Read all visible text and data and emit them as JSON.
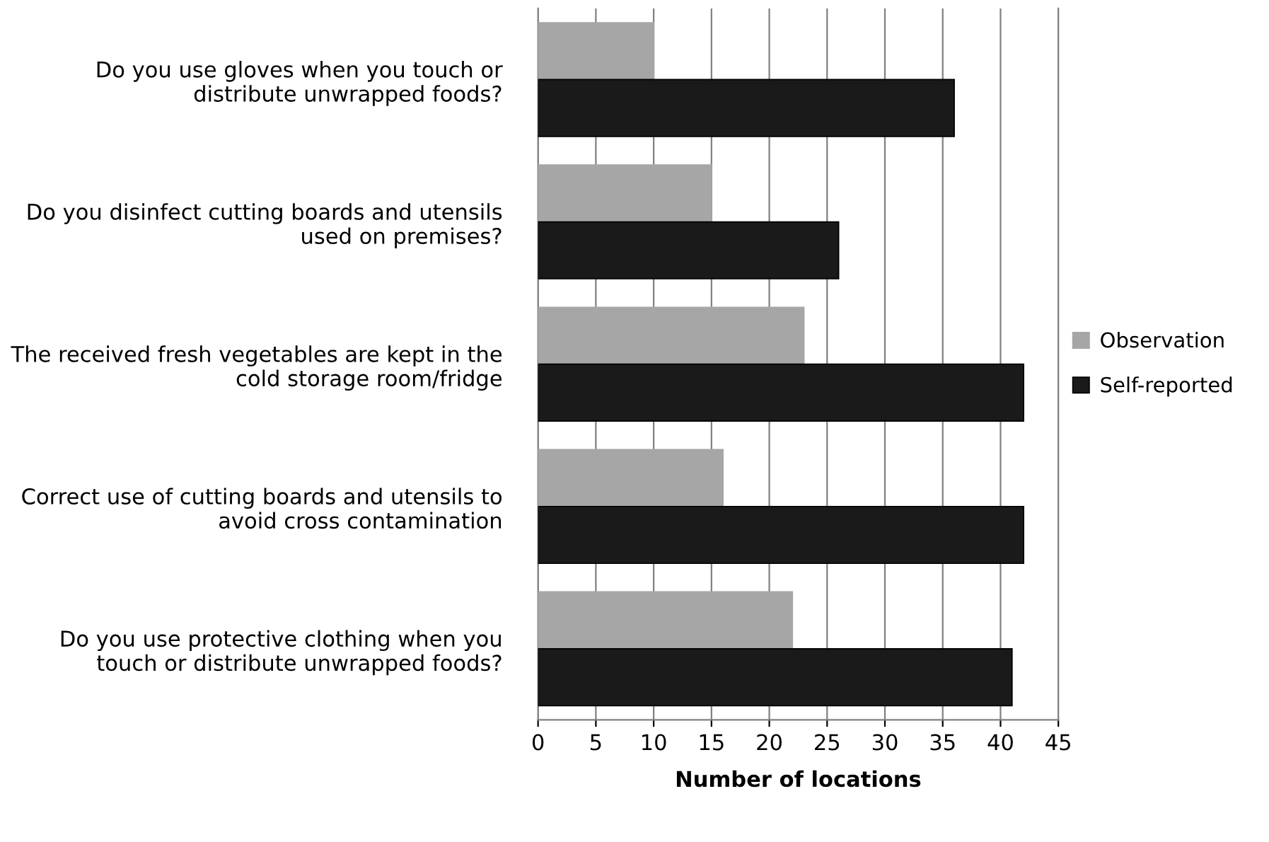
{
  "chart_data": {
    "type": "bar",
    "orientation": "horizontal",
    "xlabel": "Number of locations",
    "categories": [
      "Do you use gloves when you touch or distribute unwrapped foods?",
      "Do you disinfect cutting boards and utensils used on premises?",
      "The received fresh vegetables are kept in the cold storage room/fridge",
      "Correct use of cutting boards and utensils to avoid cross contamination",
      "Do you use protective clothing when you touch or distribute unwrapped foods?"
    ],
    "series": [
      {
        "name": "Observation",
        "color": "#a6a6a6",
        "values": [
          10,
          15,
          23,
          16,
          22
        ]
      },
      {
        "name": "Self-reported",
        "color": "#1a1a1a",
        "values": [
          36,
          26,
          42,
          42,
          41
        ]
      }
    ],
    "xlim": [
      0,
      45
    ],
    "xticks": [
      0,
      5,
      10,
      15,
      20,
      25,
      30,
      35,
      40,
      45
    ],
    "grid": "x",
    "legend": "right"
  }
}
